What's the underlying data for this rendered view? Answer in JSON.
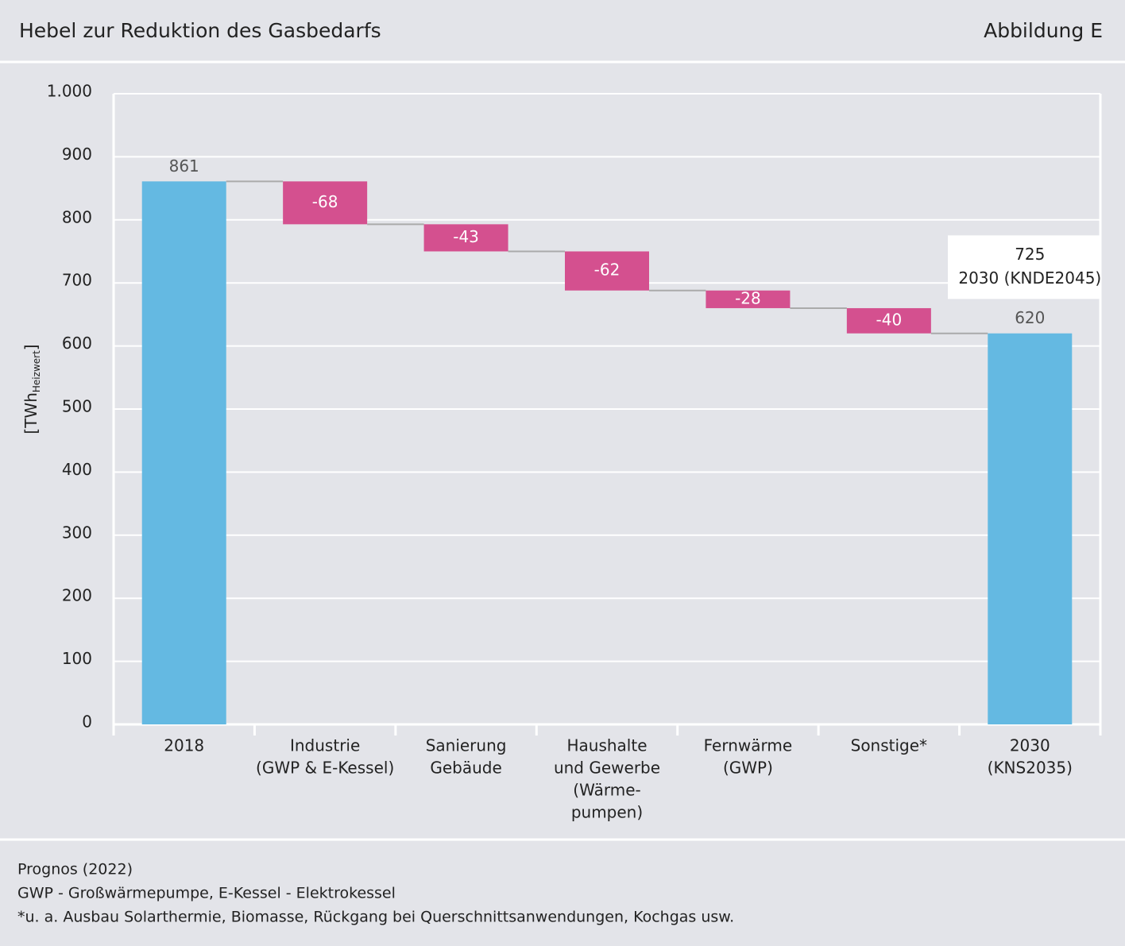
{
  "header": {
    "title": "Hebel zur Reduktion des Gasbedarfs",
    "figure": "Abbildung E"
  },
  "chart_data": {
    "type": "waterfall",
    "y_label": [
      "[TWh",
      "Heizwert",
      "]"
    ],
    "categories": [
      [
        "2018"
      ],
      [
        "Industrie",
        "(GWP & E-Kessel)"
      ],
      [
        "Sanierung",
        "Gebäude"
      ],
      [
        "Haushalte",
        "und Gewerbe",
        "(Wärme-",
        "pumpen)"
      ],
      [
        "Fernwärme",
        "(GWP)"
      ],
      [
        "Sonstige*"
      ],
      [
        "2030",
        "(KNS2035)"
      ]
    ],
    "values": [
      861,
      -68,
      -43,
      -62,
      -28,
      -40,
      620
    ],
    "measures": [
      "total",
      "relative",
      "relative",
      "relative",
      "relative",
      "relative",
      "total"
    ],
    "colors": [
      "#64b9e2",
      "#d4508f",
      "#d4508f",
      "#d4508f",
      "#d4508f",
      "#d4508f",
      "#64b9e2"
    ],
    "ylim": [
      0,
      1000
    ],
    "yticks": [
      0,
      100,
      200,
      300,
      400,
      500,
      600,
      700,
      800,
      900,
      {
        "value": 1000,
        "label": "1.000"
      }
    ],
    "grid": true,
    "annotation": {
      "value": 725,
      "label": "2030 (KNDE2045)"
    }
  },
  "footer": [
    "Prognos (2022)",
    "GWP - Großwärmepumpe, E-Kessel - Elektrokessel",
    "*u. a. Ausbau Solarthermie, Biomasse, Rückgang bei Querschnittsanwendungen, Kochgas usw."
  ]
}
